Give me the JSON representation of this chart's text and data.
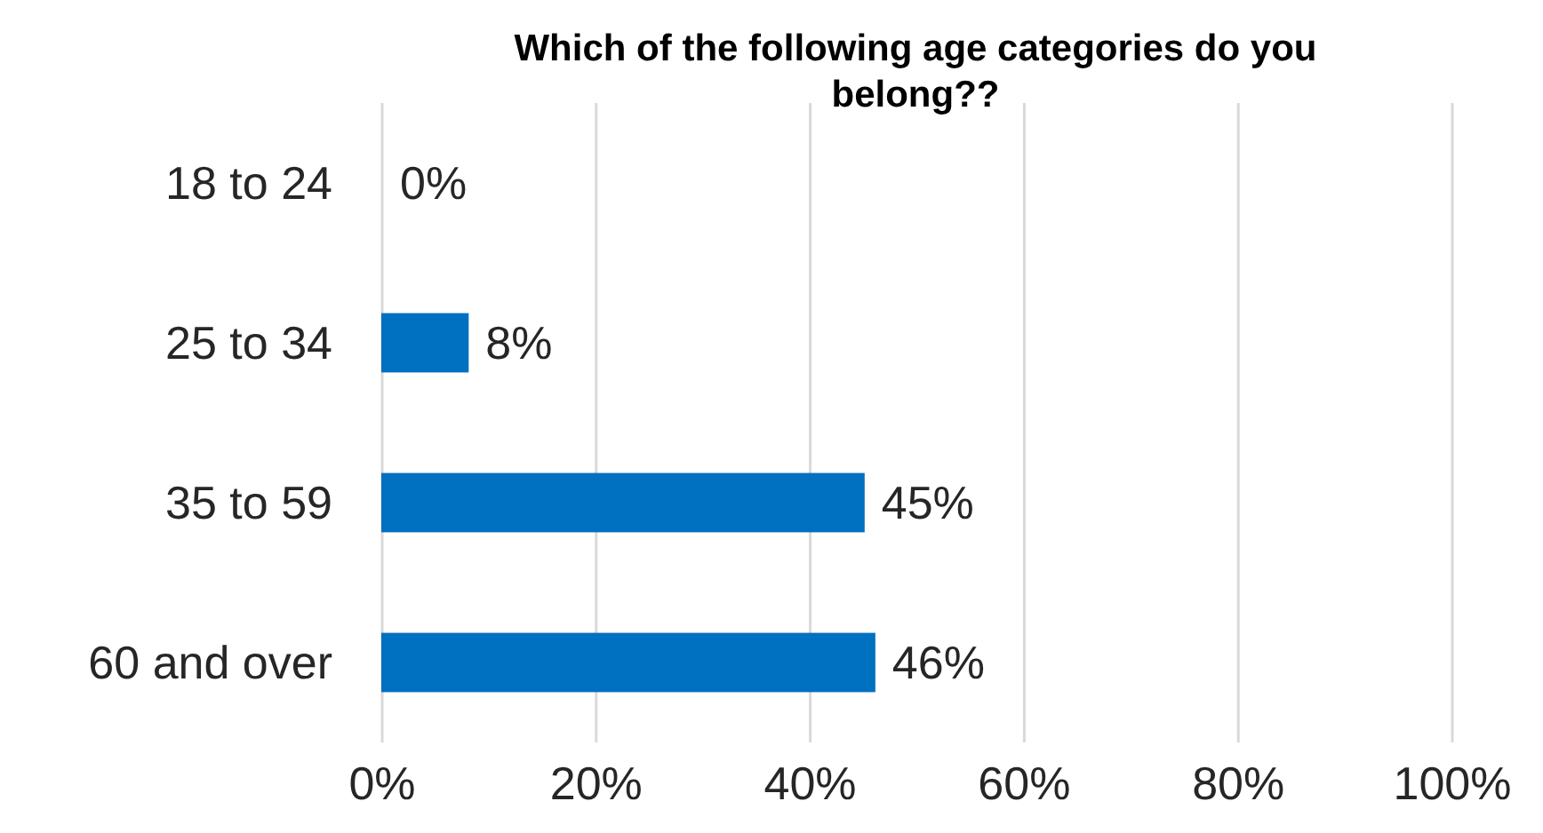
{
  "chart_data": {
    "type": "bar",
    "orientation": "horizontal",
    "title": "Which of the following age categories do you belong??",
    "categories": [
      "18 to 24",
      "25 to 34",
      "35 to 59",
      "60 and over"
    ],
    "values": [
      0,
      8,
      45,
      46
    ],
    "color": "#0070c0",
    "value_labels": [
      "0%",
      "8%",
      "45%",
      "46%"
    ],
    "xlim": [
      0,
      100
    ],
    "xticks": [
      {
        "value": 0,
        "label": "0%"
      },
      {
        "value": 20,
        "label": "20%"
      },
      {
        "value": 40,
        "label": "40%"
      },
      {
        "value": 60,
        "label": "60%"
      },
      {
        "value": 80,
        "label": "80%"
      },
      {
        "value": 100,
        "label": "100%"
      }
    ],
    "grid": "x"
  }
}
